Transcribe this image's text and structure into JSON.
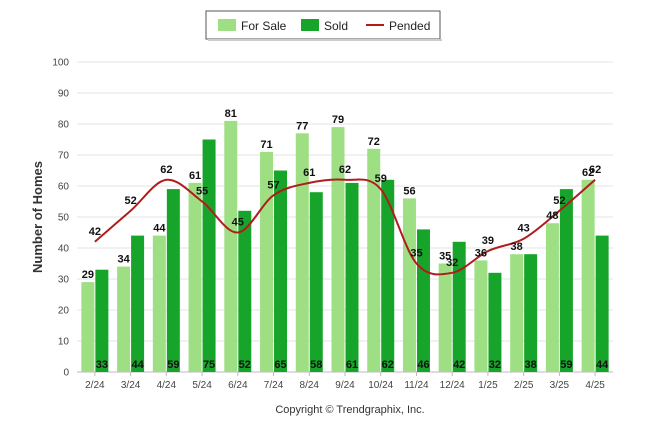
{
  "chart_data": {
    "type": "bar",
    "categories": [
      "2/24",
      "3/24",
      "4/24",
      "5/24",
      "6/24",
      "7/24",
      "8/24",
      "9/24",
      "10/24",
      "11/24",
      "12/24",
      "1/25",
      "2/25",
      "3/25",
      "4/25"
    ],
    "series": [
      {
        "name": "For Sale",
        "type": "bar",
        "color": "#9fdf84",
        "values": [
          29,
          34,
          44,
          61,
          81,
          71,
          77,
          79,
          72,
          56,
          35,
          36,
          38,
          48,
          62
        ]
      },
      {
        "name": "Sold",
        "type": "bar",
        "color": "#17a42a",
        "values": [
          33,
          44,
          59,
          75,
          52,
          65,
          58,
          61,
          62,
          46,
          42,
          32,
          38,
          59,
          44
        ]
      },
      {
        "name": "Pended",
        "type": "line",
        "color": "#b01c1c",
        "values": [
          42,
          52,
          62,
          55,
          45,
          57,
          61,
          62,
          59,
          35,
          32,
          39,
          43,
          52,
          62
        ]
      }
    ],
    "ylabel": "Number of Homes",
    "xlabel": "",
    "ylim": [
      0,
      100
    ],
    "yticks": [
      0,
      10,
      20,
      30,
      40,
      50,
      60,
      70,
      80,
      90,
      100
    ],
    "grid": true,
    "legend_position": "top-center",
    "footer": "Copyright © Trendgraphix, Inc."
  }
}
